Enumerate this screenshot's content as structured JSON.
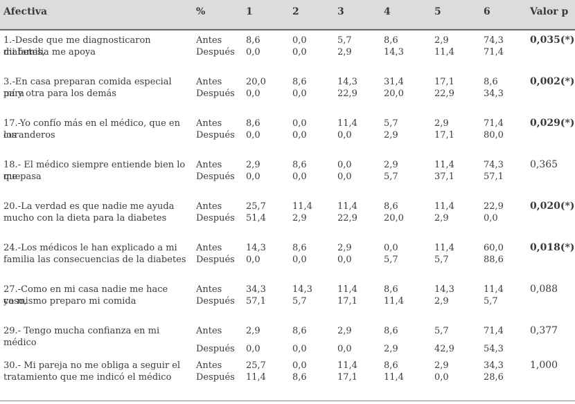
{
  "header": {
    "afectiva": "Afectiva",
    "pct": "%",
    "c1": "1",
    "c2": "2",
    "c3": "3",
    "c4": "4",
    "c5": "5",
    "c6": "6",
    "valor_p": "Valor p"
  },
  "rows": [
    {
      "item_line1": "1.-Desde que me diagnosticaron diabetes,",
      "item_line2": "mi familia me apoya",
      "antes_label": "Antes",
      "despues_label": "Después",
      "antes": [
        "8,6",
        "0,0",
        "5,7",
        "8,6",
        "2,9",
        "74,3"
      ],
      "despues": [
        "0,0",
        "0,0",
        "2,9",
        "14,3",
        "11,4",
        "71,4"
      ],
      "p": "0,035(*)",
      "sig": true
    },
    {
      "item_line1": "3.-En casa preparan comida especial para",
      "item_line2": "mí y otra para los demás",
      "antes_label": "Antes",
      "despues_label": "Después",
      "antes": [
        "20,0",
        "8,6",
        "14,3",
        "31,4",
        "17,1",
        "8,6"
      ],
      "despues": [
        "0,0",
        "0,0",
        "22,9",
        "20,0",
        "22,9",
        "34,3"
      ],
      "p": "0,002(*)",
      "sig": true
    },
    {
      "item_line1": "17.-Yo confío más en el médico, que en los",
      "item_line2": "curanderos",
      "antes_label": "Antes",
      "despues_label": "Después",
      "antes": [
        "8,6",
        "0,0",
        "11,4",
        "5,7",
        "2,9",
        "71,4"
      ],
      "despues": [
        "0,0",
        "0,0",
        "0,0",
        "2,9",
        "17,1",
        "80,0"
      ],
      "p": "0,029(*)",
      "sig": true
    },
    {
      "item_line1": "18.- El médico siempre entiende bien lo que",
      "item_line2": "me pasa",
      "antes_label": "Antes",
      "despues_label": "Después",
      "antes": [
        "2,9",
        "8,6",
        "0,0",
        "2,9",
        "11,4",
        "74,3"
      ],
      "despues": [
        "0,0",
        "0,0",
        "0,0",
        "5,7",
        "37,1",
        "57,1"
      ],
      "p": "0,365",
      "sig": false
    },
    {
      "item_line1": "20.-La verdad es que nadie me ayuda",
      "item_line2": "mucho con la dieta para la diabetes",
      "antes_label": "Antes",
      "despues_label": "Después",
      "antes": [
        "25,7",
        "11,4",
        "11,4",
        "8,6",
        "11,4",
        "22,9"
      ],
      "despues": [
        "51,4",
        "2,9",
        "22,9",
        "20,0",
        "2,9",
        "0,0"
      ],
      "p": "0,020(*)",
      "sig": true
    },
    {
      "item_line1": "24.-Los médicos le han explicado a mi",
      "item_line2": "familia las consecuencias de la diabetes",
      "antes_label": "Antes",
      "despues_label": "Después",
      "antes": [
        "14,3",
        "8,6",
        "2,9",
        "0,0",
        "11,4",
        "60,0"
      ],
      "despues": [
        "0,0",
        "0,0",
        "0,0",
        "5,7",
        "5,7",
        "88,6"
      ],
      "p": "0,018(*)",
      "sig": true
    },
    {
      "item_line1": "27.-Como en mi casa nadie me hace caso,",
      "item_line2": "yo mismo preparo mi comida",
      "antes_label": "Antes",
      "despues_label": "Después",
      "antes": [
        "34,3",
        "14,3",
        "11,4",
        "8,6",
        "14,3",
        "11,4"
      ],
      "despues": [
        "57,1",
        "5,7",
        "17,1",
        "11,4",
        "2,9",
        "5,7"
      ],
      "p": "0,088",
      "sig": false
    },
    {
      "item_line1": "29.- Tengo mucha confianza en mi médico",
      "item_line2": "",
      "antes_label": "Antes",
      "despues_label": "Después",
      "antes": [
        "2,9",
        "8,6",
        "2,9",
        "8,6",
        "5,7",
        "71,4"
      ],
      "despues": [
        "0,0",
        "0,0",
        "0,0",
        "2,9",
        "42,9",
        "54,3"
      ],
      "p": "0,377",
      "sig": false
    },
    {
      "item_line1": "30.- Mi pareja no me obliga a seguir el",
      "item_line2": "tratamiento que me indicó el médico",
      "antes_label": "Antes",
      "despues_label": "Después",
      "antes": [
        "25,7",
        "0,0",
        "11,4",
        "8,6",
        "2,9",
        "34,3"
      ],
      "despues": [
        "11,4",
        "8,6",
        "17,1",
        "11,4",
        "0,0",
        "28,6"
      ],
      "p": "1,000",
      "sig": false
    }
  ]
}
